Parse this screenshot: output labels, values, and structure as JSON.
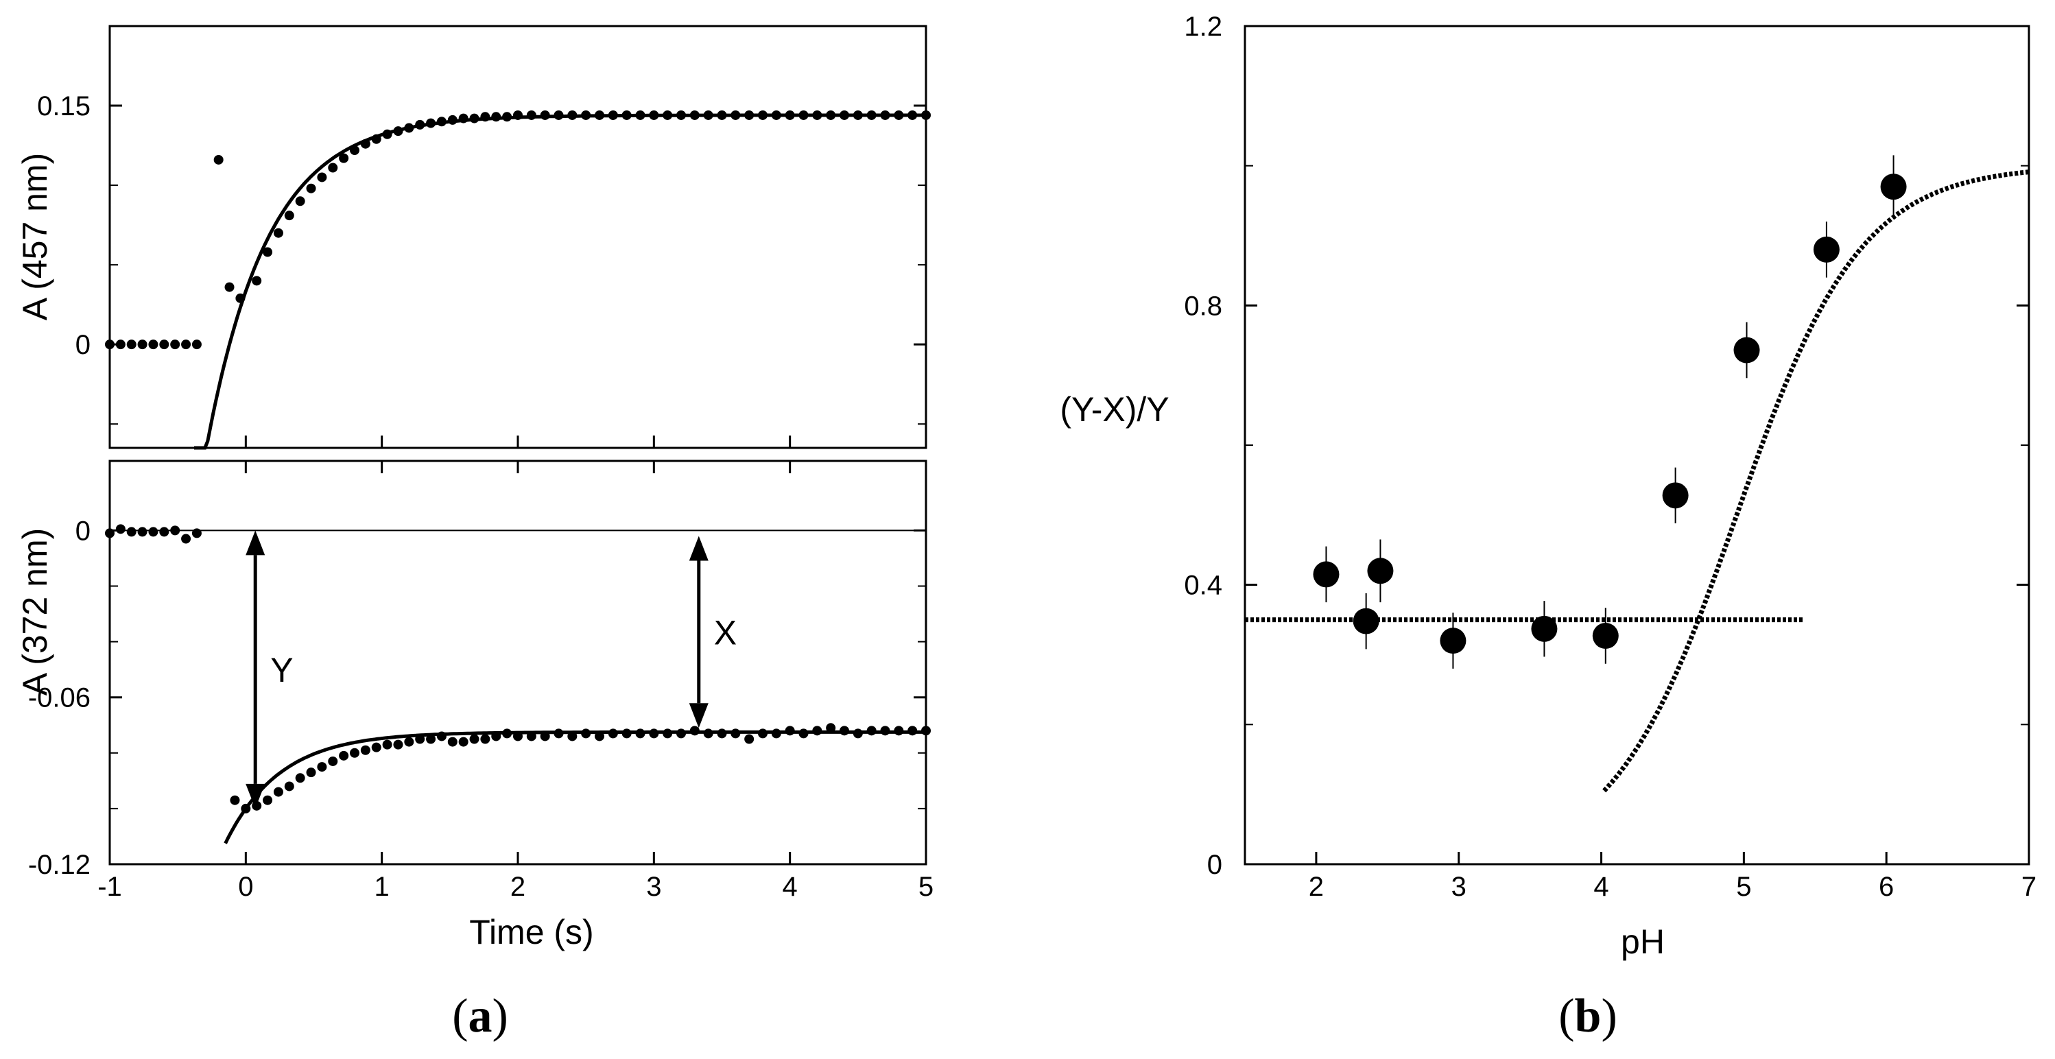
{
  "chart_data": [
    {
      "id": "a_top",
      "type": "scatter",
      "ylabel": "A (457 nm)",
      "xlim": [
        -1,
        5
      ],
      "ylim": [
        -0.065,
        0.2
      ],
      "yticks": [
        {
          "v": 0,
          "label": "0"
        },
        {
          "v": 0.15,
          "label": "0.15"
        }
      ],
      "yminor": [
        -0.05,
        0.05,
        0.1
      ],
      "points": [
        {
          "x": -1.0,
          "y": 0
        },
        {
          "x": -0.92,
          "y": 0
        },
        {
          "x": -0.84,
          "y": 0
        },
        {
          "x": -0.76,
          "y": 0
        },
        {
          "x": -0.68,
          "y": 0
        },
        {
          "x": -0.6,
          "y": 0
        },
        {
          "x": -0.52,
          "y": 0
        },
        {
          "x": -0.44,
          "y": 0
        },
        {
          "x": -0.36,
          "y": 0
        },
        {
          "x": -0.2,
          "y": 0.116
        },
        {
          "x": -0.12,
          "y": 0.036
        },
        {
          "x": -0.04,
          "y": 0.029
        },
        {
          "x": 0.08,
          "y": 0.04
        },
        {
          "x": 0.16,
          "y": 0.058
        },
        {
          "x": 0.24,
          "y": 0.07
        },
        {
          "x": 0.32,
          "y": 0.081
        },
        {
          "x": 0.4,
          "y": 0.09
        },
        {
          "x": 0.48,
          "y": 0.098
        },
        {
          "x": 0.56,
          "y": 0.105
        },
        {
          "x": 0.64,
          "y": 0.111
        },
        {
          "x": 0.72,
          "y": 0.117
        },
        {
          "x": 0.8,
          "y": 0.122
        },
        {
          "x": 0.88,
          "y": 0.126
        },
        {
          "x": 0.96,
          "y": 0.129
        },
        {
          "x": 1.04,
          "y": 0.132
        },
        {
          "x": 1.12,
          "y": 0.134
        },
        {
          "x": 1.2,
          "y": 0.136
        },
        {
          "x": 1.28,
          "y": 0.138
        },
        {
          "x": 1.36,
          "y": 0.139
        },
        {
          "x": 1.44,
          "y": 0.14
        },
        {
          "x": 1.52,
          "y": 0.141
        },
        {
          "x": 1.6,
          "y": 0.142
        },
        {
          "x": 1.68,
          "y": 0.142
        },
        {
          "x": 1.76,
          "y": 0.143
        },
        {
          "x": 1.84,
          "y": 0.143
        },
        {
          "x": 1.92,
          "y": 0.143
        },
        {
          "x": 2.0,
          "y": 0.144
        },
        {
          "x": 2.1,
          "y": 0.144
        },
        {
          "x": 2.2,
          "y": 0.144
        },
        {
          "x": 2.3,
          "y": 0.144
        },
        {
          "x": 2.4,
          "y": 0.144
        },
        {
          "x": 2.5,
          "y": 0.144
        },
        {
          "x": 2.6,
          "y": 0.144
        },
        {
          "x": 2.7,
          "y": 0.144
        },
        {
          "x": 2.8,
          "y": 0.144
        },
        {
          "x": 2.9,
          "y": 0.144
        },
        {
          "x": 3.0,
          "y": 0.144
        },
        {
          "x": 3.1,
          "y": 0.144
        },
        {
          "x": 3.2,
          "y": 0.144
        },
        {
          "x": 3.3,
          "y": 0.144
        },
        {
          "x": 3.4,
          "y": 0.144
        },
        {
          "x": 3.5,
          "y": 0.144
        },
        {
          "x": 3.6,
          "y": 0.144
        },
        {
          "x": 3.7,
          "y": 0.144
        },
        {
          "x": 3.8,
          "y": 0.144
        },
        {
          "x": 3.9,
          "y": 0.144
        },
        {
          "x": 4.0,
          "y": 0.144
        },
        {
          "x": 4.1,
          "y": 0.144
        },
        {
          "x": 4.2,
          "y": 0.144
        },
        {
          "x": 4.3,
          "y": 0.144
        },
        {
          "x": 4.4,
          "y": 0.144
        },
        {
          "x": 4.5,
          "y": 0.144
        },
        {
          "x": 4.6,
          "y": 0.144
        },
        {
          "x": 4.7,
          "y": 0.144
        },
        {
          "x": 4.8,
          "y": 0.144
        },
        {
          "x": 4.9,
          "y": 0.144
        },
        {
          "x": 5.0,
          "y": 0.144
        }
      ],
      "fit": {
        "model": "exp_rise",
        "plateau": 0.144,
        "rate": 2.2,
        "x0": -0.12,
        "y0": 0.0,
        "x_start": -0.38,
        "x_end": 5.0
      }
    },
    {
      "id": "a_bottom",
      "type": "scatter",
      "xlabel": "Time (s)",
      "ylabel": "A (372 nm)",
      "xlim": [
        -1,
        5
      ],
      "ylim": [
        -0.12,
        0.025
      ],
      "xticks": [
        {
          "v": -1,
          "label": "-1"
        },
        {
          "v": 0,
          "label": "0"
        },
        {
          "v": 1,
          "label": "1"
        },
        {
          "v": 2,
          "label": "2"
        },
        {
          "v": 3,
          "label": "3"
        },
        {
          "v": 4,
          "label": "4"
        },
        {
          "v": 5,
          "label": "5"
        }
      ],
      "yticks": [
        {
          "v": 0,
          "label": "0"
        },
        {
          "v": -0.06,
          "label": "-0.06"
        },
        {
          "v": -0.12,
          "label": "-0.12"
        }
      ],
      "yminor": [
        -0.02,
        -0.04,
        -0.08,
        -0.1
      ],
      "zero_line": true,
      "points": [
        {
          "x": -1.0,
          "y": -0.001
        },
        {
          "x": -0.92,
          "y": 0.0005
        },
        {
          "x": -0.84,
          "y": -0.0005
        },
        {
          "x": -0.76,
          "y": -0.0005
        },
        {
          "x": -0.68,
          "y": -0.0005
        },
        {
          "x": -0.6,
          "y": -0.0005
        },
        {
          "x": -0.52,
          "y": 0
        },
        {
          "x": -0.44,
          "y": -0.003
        },
        {
          "x": -0.36,
          "y": -0.001
        },
        {
          "x": -0.08,
          "y": -0.097
        },
        {
          "x": 0.0,
          "y": -0.1
        },
        {
          "x": 0.08,
          "y": -0.099
        },
        {
          "x": 0.16,
          "y": -0.097
        },
        {
          "x": 0.24,
          "y": -0.094
        },
        {
          "x": 0.32,
          "y": -0.092
        },
        {
          "x": 0.4,
          "y": -0.089
        },
        {
          "x": 0.48,
          "y": -0.087
        },
        {
          "x": 0.56,
          "y": -0.085
        },
        {
          "x": 0.64,
          "y": -0.083
        },
        {
          "x": 0.72,
          "y": -0.081
        },
        {
          "x": 0.8,
          "y": -0.08
        },
        {
          "x": 0.88,
          "y": -0.079
        },
        {
          "x": 0.96,
          "y": -0.078
        },
        {
          "x": 1.04,
          "y": -0.077
        },
        {
          "x": 1.12,
          "y": -0.077
        },
        {
          "x": 1.2,
          "y": -0.076
        },
        {
          "x": 1.28,
          "y": -0.075
        },
        {
          "x": 1.36,
          "y": -0.075
        },
        {
          "x": 1.44,
          "y": -0.074
        },
        {
          "x": 1.52,
          "y": -0.076
        },
        {
          "x": 1.6,
          "y": -0.076
        },
        {
          "x": 1.68,
          "y": -0.075
        },
        {
          "x": 1.76,
          "y": -0.075
        },
        {
          "x": 1.84,
          "y": -0.074
        },
        {
          "x": 1.92,
          "y": -0.073
        },
        {
          "x": 2.0,
          "y": -0.074
        },
        {
          "x": 2.1,
          "y": -0.074
        },
        {
          "x": 2.2,
          "y": -0.074
        },
        {
          "x": 2.3,
          "y": -0.073
        },
        {
          "x": 2.4,
          "y": -0.074
        },
        {
          "x": 2.5,
          "y": -0.073
        },
        {
          "x": 2.6,
          "y": -0.074
        },
        {
          "x": 2.7,
          "y": -0.073
        },
        {
          "x": 2.8,
          "y": -0.073
        },
        {
          "x": 2.9,
          "y": -0.073
        },
        {
          "x": 3.0,
          "y": -0.073
        },
        {
          "x": 3.1,
          "y": -0.073
        },
        {
          "x": 3.2,
          "y": -0.073
        },
        {
          "x": 3.3,
          "y": -0.072
        },
        {
          "x": 3.4,
          "y": -0.073
        },
        {
          "x": 3.5,
          "y": -0.073
        },
        {
          "x": 3.6,
          "y": -0.073
        },
        {
          "x": 3.7,
          "y": -0.075
        },
        {
          "x": 3.8,
          "y": -0.073
        },
        {
          "x": 3.9,
          "y": -0.073
        },
        {
          "x": 4.0,
          "y": -0.072
        },
        {
          "x": 4.1,
          "y": -0.073
        },
        {
          "x": 4.2,
          "y": -0.072
        },
        {
          "x": 4.3,
          "y": -0.071
        },
        {
          "x": 4.4,
          "y": -0.072
        },
        {
          "x": 4.5,
          "y": -0.073
        },
        {
          "x": 4.6,
          "y": -0.072
        },
        {
          "x": 4.7,
          "y": -0.072
        },
        {
          "x": 4.8,
          "y": -0.072
        },
        {
          "x": 4.9,
          "y": -0.072
        },
        {
          "x": 5.0,
          "y": -0.072
        }
      ],
      "fit": {
        "model": "exp_rise",
        "plateau": -0.0725,
        "rate": 2.5,
        "x0": 0.0,
        "y0": -0.1,
        "x_start": -0.15,
        "x_end": 5.0
      },
      "markers": [
        {
          "label": "Y",
          "x": 0.07,
          "y_top": 0.0,
          "y_bottom": -0.1
        },
        {
          "label": "X",
          "x": 3.33,
          "y_top": -0.002,
          "y_bottom": -0.071
        }
      ]
    },
    {
      "id": "b",
      "type": "scatter",
      "xlabel": "pH",
      "ylabel": "(Y-X)/Y",
      "xlim": [
        1.5,
        7
      ],
      "ylim": [
        0,
        1.2
      ],
      "xticks": [
        {
          "v": 2,
          "label": "2"
        },
        {
          "v": 3,
          "label": "3"
        },
        {
          "v": 4,
          "label": "4"
        },
        {
          "v": 5,
          "label": "5"
        },
        {
          "v": 6,
          "label": "6"
        },
        {
          "v": 7,
          "label": "7"
        }
      ],
      "yticks": [
        {
          "v": 0,
          "label": "0"
        },
        {
          "v": 0.4,
          "label": "0.4"
        },
        {
          "v": 0.8,
          "label": "0.8"
        },
        {
          "v": 1.2,
          "label": "1.2"
        }
      ],
      "yminor": [
        0.2,
        0.6,
        1.0
      ],
      "points": [
        {
          "x": 2.07,
          "y": 0.415,
          "err": 0.04
        },
        {
          "x": 2.35,
          "y": 0.348,
          "err": 0.04
        },
        {
          "x": 2.45,
          "y": 0.42,
          "err": 0.045
        },
        {
          "x": 2.96,
          "y": 0.32,
          "err": 0.04
        },
        {
          "x": 3.6,
          "y": 0.337,
          "err": 0.04
        },
        {
          "x": 4.03,
          "y": 0.327,
          "err": 0.04
        },
        {
          "x": 4.52,
          "y": 0.528,
          "err": 0.04
        },
        {
          "x": 5.02,
          "y": 0.736,
          "err": 0.04
        },
        {
          "x": 5.58,
          "y": 0.88,
          "err": 0.04
        },
        {
          "x": 6.05,
          "y": 0.97,
          "err": 0.045
        }
      ],
      "lines": [
        {
          "name": "baseline",
          "model": "constant",
          "value": 0.35,
          "x_start": 1.5,
          "x_end": 5.42
        },
        {
          "name": "titration",
          "model": "sigmoid",
          "pKa": 4.95,
          "base": 0,
          "top": 1.0,
          "x_start": 4.02,
          "x_end": 7.0
        }
      ]
    }
  ],
  "captions": {
    "a": "(a)",
    "a_letter": "a",
    "b": "(b)",
    "b_letter": "b"
  }
}
